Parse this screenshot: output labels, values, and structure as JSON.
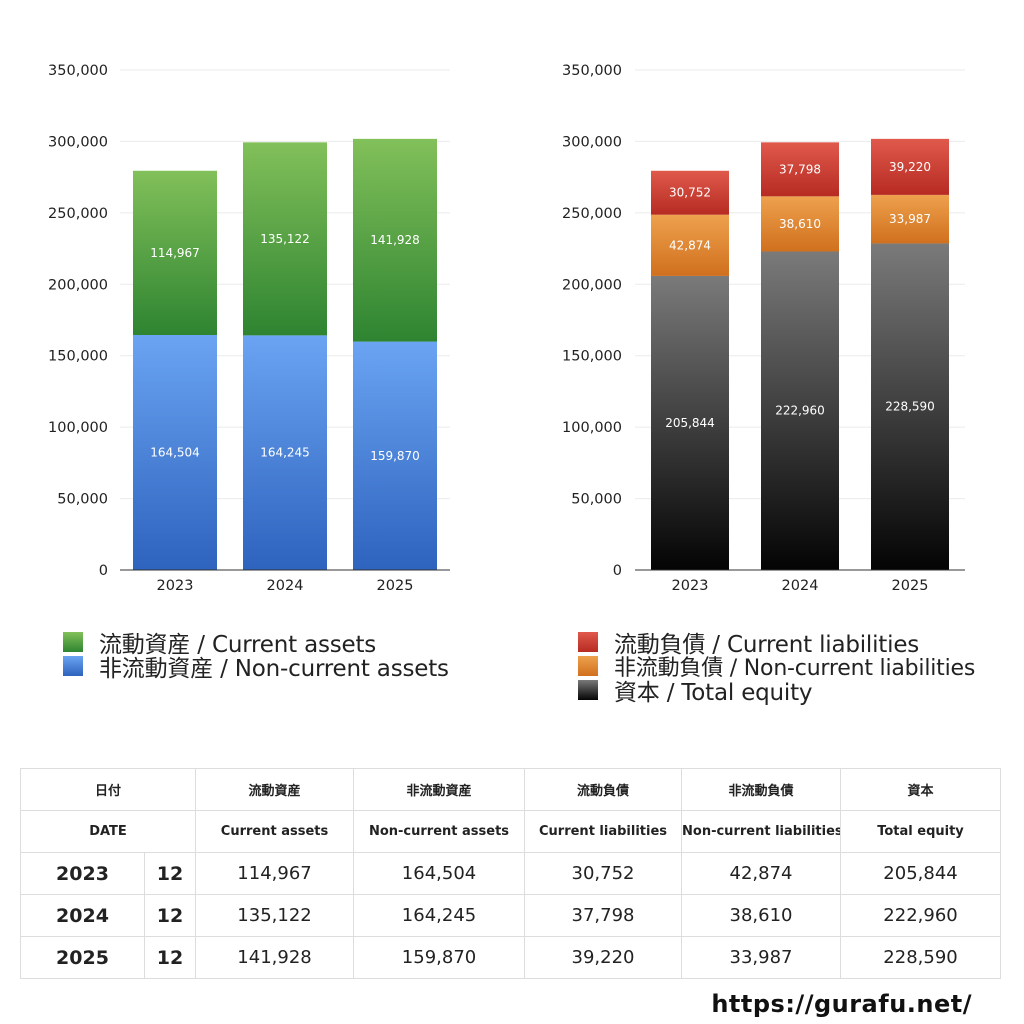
{
  "chart_data": [
    {
      "type": "bar",
      "stacked": true,
      "categories": [
        "2023",
        "2024",
        "2025"
      ],
      "ylim": [
        0,
        350000
      ],
      "yticks": [
        "0",
        "50,000",
        "100,000",
        "150,000",
        "200,000",
        "250,000",
        "300,000",
        "350,000"
      ],
      "grid": true,
      "legend_position": "bottom",
      "series": [
        {
          "name": "非流動資産 / Non-current assets",
          "values": [
            164504,
            164245,
            159870
          ],
          "labels": [
            "164,504",
            "164,245",
            "159,870"
          ],
          "color_top": "#6aa4f2",
          "color_bottom": "#2e63be"
        },
        {
          "name": "流動資産 / Current assets",
          "values": [
            114967,
            135122,
            141928
          ],
          "labels": [
            "114,967",
            "135,122",
            "141,928"
          ],
          "color_top": "#82c05a",
          "color_bottom": "#2e8431"
        }
      ]
    },
    {
      "type": "bar",
      "stacked": true,
      "categories": [
        "2023",
        "2024",
        "2025"
      ],
      "ylim": [
        0,
        350000
      ],
      "yticks": [
        "0",
        "50,000",
        "100,000",
        "150,000",
        "200,000",
        "250,000",
        "300,000",
        "350,000"
      ],
      "grid": true,
      "legend_position": "bottom",
      "series": [
        {
          "name": "資本 / Total equity",
          "values": [
            205844,
            222960,
            228590
          ],
          "labels": [
            "205,844",
            "222,960",
            "228,590"
          ],
          "color_top": "#7a7a7a",
          "color_bottom": "#040404"
        },
        {
          "name": "非流動負債 / Non-current liabilities",
          "values": [
            42874,
            38610,
            33987
          ],
          "labels": [
            "42,874",
            "38,610",
            "33,987"
          ],
          "color_top": "#eea14d",
          "color_bottom": "#d0701e"
        },
        {
          "name": "流動負債 / Current liabilities",
          "values": [
            30752,
            37798,
            39220
          ],
          "labels": [
            "30,752",
            "37,798",
            "39,220"
          ],
          "color_top": "#e05a4c",
          "color_bottom": "#b62a22"
        }
      ]
    }
  ],
  "legend_left": [
    {
      "label": "流動資産 / Current assets",
      "color": "#4a9a3c"
    },
    {
      "label": "非流動資産 / Non-current assets",
      "color": "#4a86d8"
    }
  ],
  "legend_right": [
    {
      "label": "流動負債 / Current liabilities",
      "color": "#c83a30"
    },
    {
      "label": "非流動負債 / Non-current liabilities",
      "color": "#e08a36"
    },
    {
      "label": "資本 / Total equity",
      "color": "#2a2a2a"
    }
  ],
  "table": {
    "header_jp": [
      "日付",
      "流動資産",
      "非流動資産",
      "流動負債",
      "非流動負債",
      "資本"
    ],
    "header_en": [
      "DATE",
      "Current assets",
      "Non-current assets",
      "Current liabilities",
      "Non-current liabilities",
      "Total equity"
    ],
    "rows": [
      {
        "year": "2023",
        "month": "12",
        "cells": [
          "114,967",
          "164,504",
          "30,752",
          "42,874",
          "205,844"
        ]
      },
      {
        "year": "2024",
        "month": "12",
        "cells": [
          "135,122",
          "164,245",
          "37,798",
          "38,610",
          "222,960"
        ]
      },
      {
        "year": "2025",
        "month": "12",
        "cells": [
          "141,928",
          "159,870",
          "39,220",
          "33,987",
          "228,590"
        ]
      }
    ]
  },
  "site": "https://gurafu.net/"
}
